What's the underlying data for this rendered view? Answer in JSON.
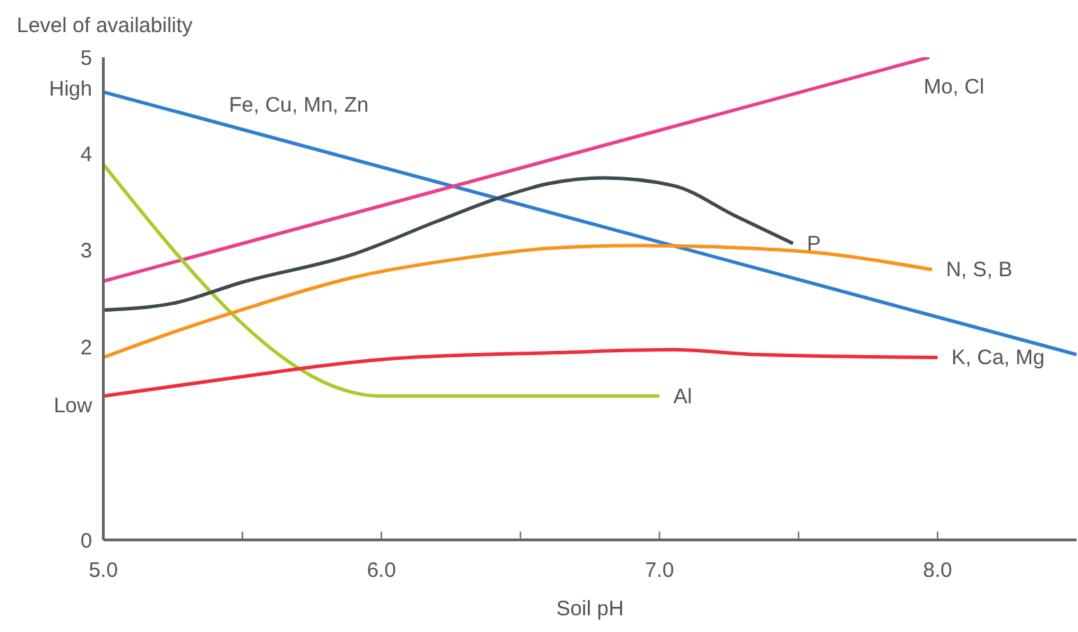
{
  "chart_data": {
    "type": "line",
    "xlabel": "Soil pH",
    "ylabel": "Level of availability",
    "xlim": [
      5,
      8.5
    ],
    "xticks": [
      {
        "value": 5,
        "label": "5.0"
      },
      {
        "value": 5.5,
        "label": null
      },
      {
        "value": 6,
        "label": "6.0"
      },
      {
        "value": 6.5,
        "label": null
      },
      {
        "value": 7,
        "label": "7.0"
      },
      {
        "value": 7.5,
        "label": null
      },
      {
        "value": 8,
        "label": "8.0"
      }
    ],
    "ylim": [
      0,
      5
    ],
    "yticks": [
      0,
      {
        "value": 1.4,
        "label": "Low"
      },
      2,
      3,
      4,
      {
        "value": 4.68,
        "label": "High"
      },
      5
    ],
    "grid": false,
    "legend": false,
    "marker": "none",
    "line_style": "solid",
    "series": [
      {
        "name": "Fe, Cu, Mn, Zn",
        "color": "#2f7fd0",
        "x": [
          5,
          8.5
        ],
        "values": [
          4.64,
          1.92
        ]
      },
      {
        "name": "Mo, Cl",
        "color": "#e8418a",
        "x": [
          5,
          7.97
        ],
        "values": [
          2.68,
          5.0
        ]
      },
      {
        "name": "Al",
        "color": "#a8cc2a",
        "x": [
          5,
          6,
          7
        ],
        "values": [
          3.89,
          1.49,
          1.49
        ]
      },
      {
        "name": "P",
        "color": "#3d4a4f",
        "x": [
          5,
          5.25,
          5.5,
          5.9,
          6.2,
          6.43,
          6.6,
          6.8,
          7.05,
          7.27,
          7.48
        ],
        "values": [
          2.38,
          2.45,
          2.67,
          2.96,
          3.3,
          3.55,
          3.69,
          3.75,
          3.67,
          3.36,
          3.07
        ]
      },
      {
        "name": "N, S, B",
        "color": "#f7941d",
        "x": [
          5,
          5.25,
          5.56,
          5.9,
          6.3,
          6.6,
          6.92,
          7.25,
          7.55,
          7.98
        ],
        "values": [
          1.89,
          2.15,
          2.44,
          2.72,
          2.92,
          3.02,
          3.05,
          3.03,
          2.98,
          2.8
        ]
      },
      {
        "name": "K, Ca, Mg",
        "color": "#ee2e3a",
        "x": [
          5,
          5.47,
          5.93,
          6.05,
          6.63,
          7.05,
          7.35,
          8
        ],
        "values": [
          1.49,
          1.68,
          1.85,
          1.88,
          1.94,
          1.97,
          1.92,
          1.89
        ]
      }
    ]
  }
}
